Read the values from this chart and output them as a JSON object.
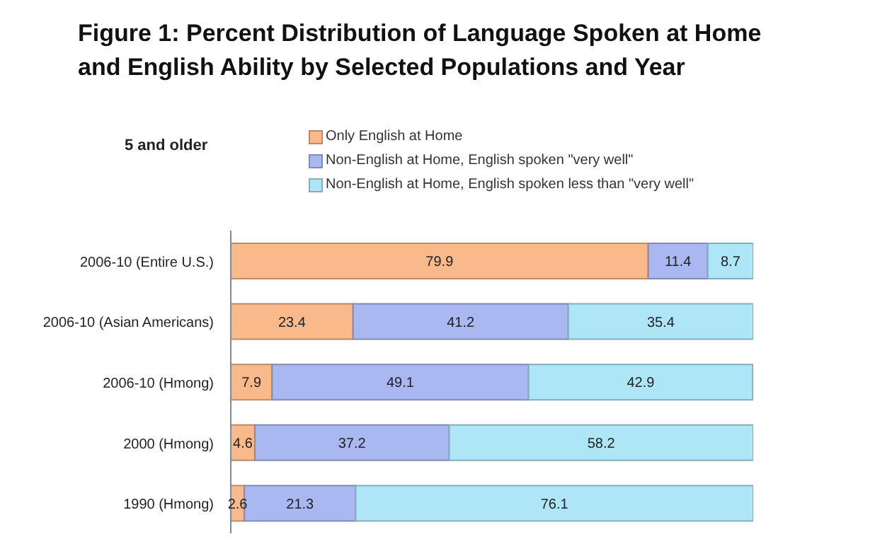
{
  "chart_data": {
    "type": "bar",
    "orientation": "horizontal",
    "stacked": true,
    "title": "Figure 1: Percent Distribution of Language Spoken at Home and English Ability by Selected Populations and Year",
    "annotations": [
      "5 and older"
    ],
    "categories": [
      "2006-10 (Entire U.S.)",
      "2006-10 (Asian Americans)",
      "2006-10 (Hmong)",
      "2000 (Hmong)",
      "1990 (Hmong)"
    ],
    "series": [
      {
        "name": "Only English at Home",
        "color": "#f9b98a",
        "values": [
          79.9,
          23.4,
          7.9,
          4.6,
          2.6
        ]
      },
      {
        "name": "Non-English at Home, English spoken \"very well\"",
        "color": "#aab8f2",
        "values": [
          11.4,
          41.2,
          49.1,
          37.2,
          21.3
        ]
      },
      {
        "name": "Non-English at Home, English spoken less than \"very well\"",
        "color": "#aee6f8",
        "values": [
          8.7,
          35.4,
          42.9,
          58.2,
          76.1
        ]
      }
    ],
    "xlim": [
      0,
      100
    ],
    "tick_labels": "y",
    "data_labels": true,
    "legend": "top"
  }
}
